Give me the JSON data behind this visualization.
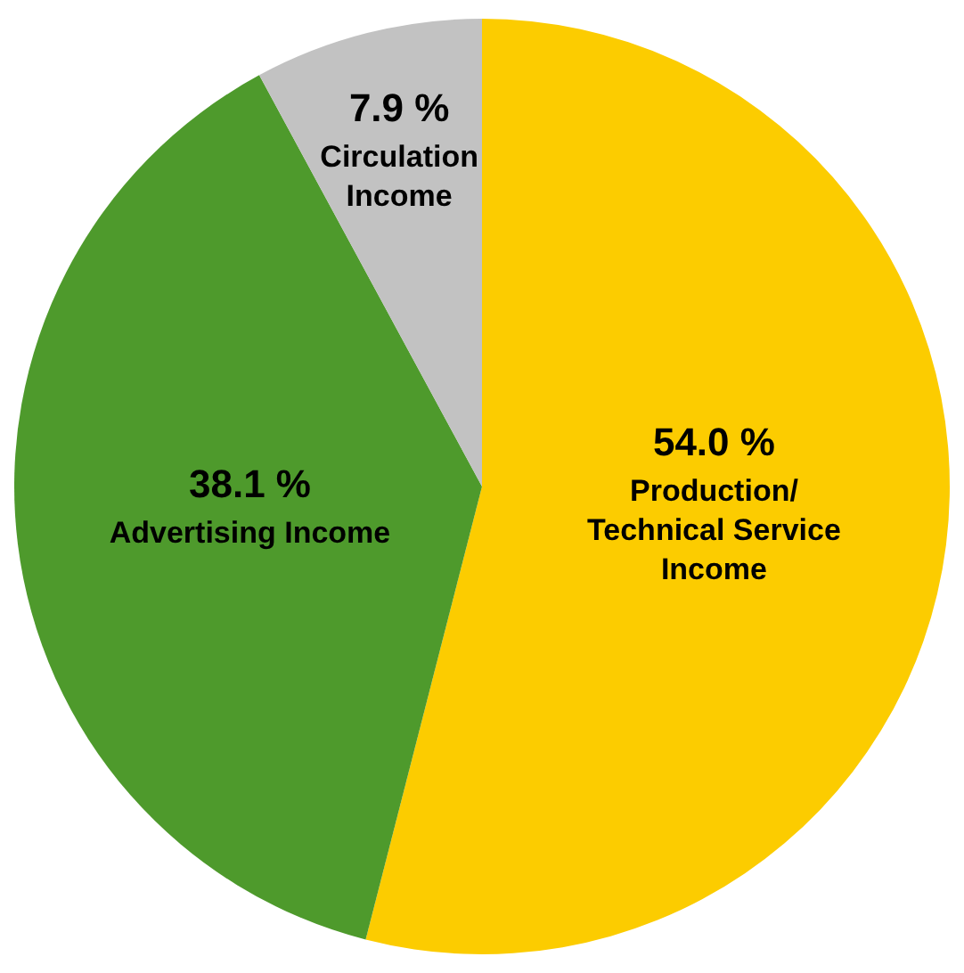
{
  "chart_data": {
    "type": "pie",
    "categories": [
      "Production/ Technical Service Income",
      "Advertising Income",
      "Circulation Income"
    ],
    "values": [
      54.0,
      38.1,
      7.9
    ],
    "colors": [
      "#fccc00",
      "#4e9a2c",
      "#c2c2c2"
    ],
    "value_labels": [
      "54.0 %",
      "38.1 %",
      "7.9 %"
    ],
    "legend": false
  }
}
